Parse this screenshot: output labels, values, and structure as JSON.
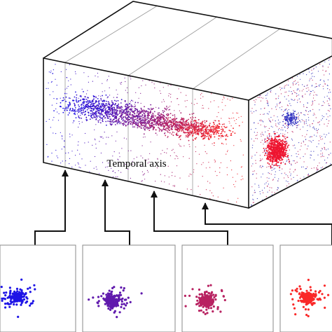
{
  "labels": {
    "axis": "Temporal axis"
  }
}
